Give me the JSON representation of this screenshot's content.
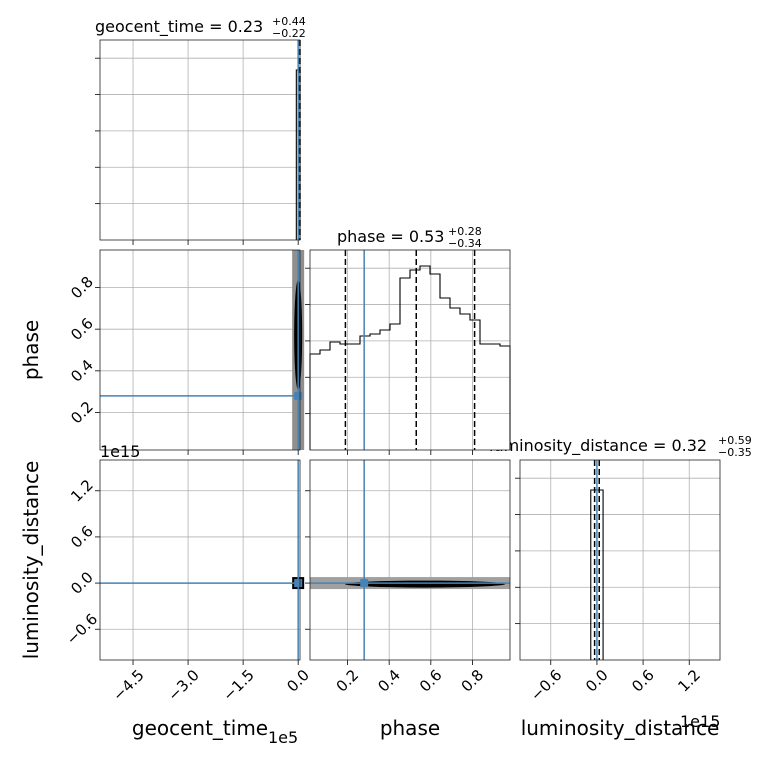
{
  "chart_data": {
    "type": "corner",
    "parameters": [
      "geocent_time",
      "phase",
      "luminosity_distance"
    ],
    "truth_color": "#4682b4",
    "titles": {
      "geocent_time": {
        "name": "geocent_time",
        "median": "0.23",
        "plus": "+0.44",
        "minus": "−0.22"
      },
      "phase": {
        "name": "phase",
        "median": "0.53",
        "plus": "+0.28",
        "minus": "−0.34"
      },
      "luminosity_distance": {
        "name": "luminosity_distance",
        "median": "0.32",
        "plus": "+0.59",
        "minus": "−0.35"
      }
    },
    "axis_labels": {
      "x": [
        "geocent_time",
        "phase",
        "luminosity_distance"
      ],
      "y": [
        "phase",
        "luminosity_distance"
      ]
    },
    "offsets": {
      "geocent_time_x": "1e5",
      "luminosity_distance_y": "1e15",
      "luminosity_distance_x": "1e15"
    },
    "axes": {
      "geocent_time": {
        "range": [
          -5.4,
          0.05
        ],
        "ticks": [
          -4.5,
          -3.0,
          -1.5,
          0.0
        ],
        "tick_labels": [
          "−4.5",
          "−3.0",
          "−1.5",
          "0.0"
        ]
      },
      "phase": {
        "range": [
          0.02,
          0.98
        ],
        "ticks": [
          0.2,
          0.4,
          0.6,
          0.8
        ],
        "tick_labels": [
          "0.2",
          "0.4",
          "0.6",
          "0.8"
        ]
      },
      "luminosity_distance": {
        "range": [
          -1.0,
          1.6
        ],
        "ticks": [
          -0.6,
          0.0,
          0.6,
          1.2
        ],
        "tick_labels": [
          "−0.6",
          "0.0",
          "0.6",
          "1.2"
        ]
      }
    },
    "truths": {
      "geocent_time": 0.0,
      "phase": 0.28,
      "luminosity_distance": 0.0
    },
    "phase_histogram": {
      "edges": [
        0.02,
        0.068,
        0.116,
        0.164,
        0.212,
        0.26,
        0.308,
        0.356,
        0.404,
        0.452,
        0.5,
        0.548,
        0.596,
        0.644,
        0.692,
        0.74,
        0.788,
        0.836,
        0.884,
        0.932,
        0.98
      ],
      "counts": [
        0.48,
        0.5,
        0.54,
        0.53,
        0.53,
        0.57,
        0.58,
        0.6,
        0.63,
        0.86,
        0.9,
        0.92,
        0.88,
        0.76,
        0.71,
        0.68,
        0.65,
        0.53,
        0.53,
        0.52
      ],
      "quantiles": [
        0.19,
        0.53,
        0.81
      ],
      "ymax": 1.0
    },
    "geocent_time_histogram": {
      "edges": [
        -0.05,
        0.0,
        0.05
      ],
      "counts": [
        0.85,
        0.85
      ],
      "quantiles": [
        0.01,
        0.05
      ],
      "ymax": 1.0
    },
    "luminosity_distance_histogram": {
      "edges": [
        -0.08,
        0.0,
        0.08
      ],
      "counts": [
        0.85,
        0.85
      ],
      "quantiles": [
        -0.03,
        0.03
      ],
      "ymax": 1.0
    }
  }
}
